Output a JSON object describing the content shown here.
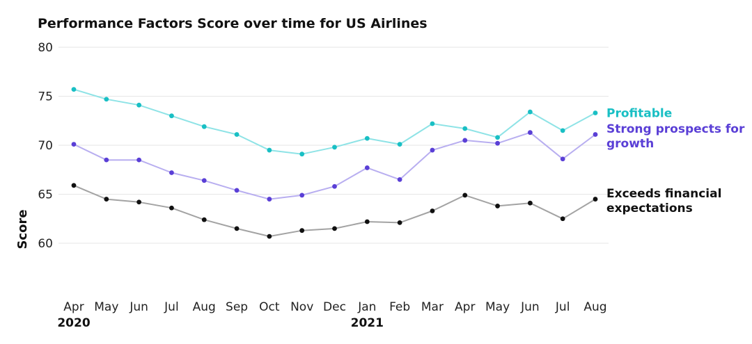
{
  "chart_data": {
    "type": "line",
    "title": "Performance Factors Score over time for US Airlines",
    "ylabel": "Score",
    "xlabel": "",
    "ylim": [
      60,
      80
    ],
    "yticks": [
      60,
      65,
      70,
      75,
      80
    ],
    "grid": true,
    "legend": "right-inline",
    "categories": [
      "Apr",
      "May",
      "Jun",
      "Jul",
      "Aug",
      "Sep",
      "Oct",
      "Nov",
      "Dec",
      "Jan",
      "Feb",
      "Mar",
      "Apr",
      "May",
      "Jun",
      "Jul",
      "Aug"
    ],
    "year_labels": [
      {
        "index": 0,
        "label": "2020"
      },
      {
        "index": 9,
        "label": "2021"
      }
    ],
    "series": [
      {
        "name": "Profitable",
        "label_lines": [
          "Profitable"
        ],
        "line_color": "#8ee3e6",
        "point_color": "#19bfc4",
        "label_color": "#19bfc4",
        "values": [
          75.7,
          74.7,
          74.1,
          73.0,
          71.9,
          71.1,
          69.5,
          69.1,
          69.8,
          70.7,
          70.1,
          72.2,
          71.7,
          70.8,
          73.4,
          71.5,
          73.3
        ]
      },
      {
        "name": "Strong prospects for growth",
        "label_lines": [
          "Strong prospects for",
          "growth"
        ],
        "line_color": "#b8aef0",
        "point_color": "#5a3fd6",
        "label_color": "#5a3fd6",
        "values": [
          70.1,
          68.5,
          68.5,
          67.2,
          66.4,
          65.4,
          64.5,
          64.9,
          65.8,
          67.7,
          66.5,
          69.5,
          70.5,
          70.2,
          71.3,
          68.6,
          71.1
        ]
      },
      {
        "name": "Exceeds financial expectations",
        "label_lines": [
          "Exceeds financial",
          "expectations"
        ],
        "line_color": "#a3a3a3",
        "point_color": "#111111",
        "label_color": "#111111",
        "values": [
          65.9,
          64.5,
          64.2,
          63.6,
          62.4,
          61.5,
          60.7,
          61.3,
          61.5,
          62.2,
          62.1,
          63.3,
          64.9,
          63.8,
          64.1,
          62.5,
          64.5
        ]
      }
    ]
  }
}
